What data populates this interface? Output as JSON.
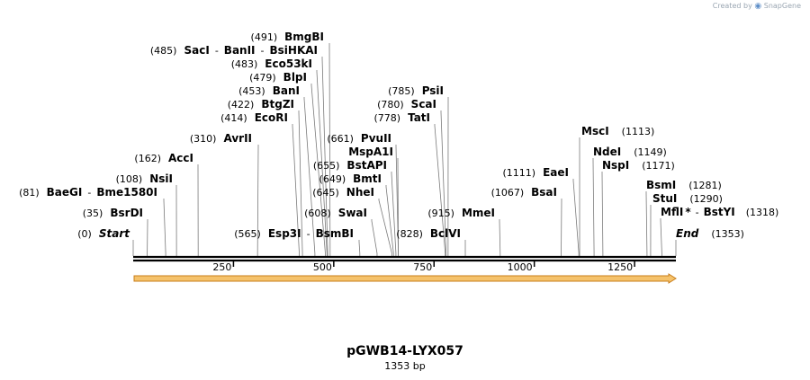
{
  "credit": {
    "prefix": "Created by",
    "brand": "SnapGene",
    "icon": "snapgene-logo-icon"
  },
  "plasmid": {
    "name": "pGWB14-LYX057",
    "size_label": "1353 bp",
    "length": 1353
  },
  "axis": {
    "ticks": [
      250,
      500,
      750,
      1000,
      1250
    ]
  },
  "feature": {
    "type": "arrow",
    "direction": "forward",
    "start": 1,
    "end": 1353,
    "fill_color": "#f5c26b",
    "stroke_color": "#c87d1a"
  },
  "colors": {
    "backbone": "#000000",
    "leader": "#7a7a7a",
    "feature_fill": "#f5c26b"
  },
  "labels": [
    {
      "name": "Start",
      "pos": 0,
      "pos_text": "(0)",
      "side": "left",
      "italic": true
    },
    {
      "name": "BsrDI",
      "pos": 35,
      "pos_text": "(35)",
      "side": "left"
    },
    {
      "name": "BaeGI",
      "pos": 81,
      "pos_text": "(81)",
      "side": "left",
      "extra": "Bme1580I"
    },
    {
      "name": "NsiI",
      "pos": 108,
      "pos_text": "(108)",
      "side": "left"
    },
    {
      "name": "AccI",
      "pos": 162,
      "pos_text": "(162)",
      "side": "left"
    },
    {
      "name": "AvrII",
      "pos": 310,
      "pos_text": "(310)",
      "side": "left"
    },
    {
      "name": "Esp3I",
      "pos": 565,
      "pos_text": "(565)",
      "side": "left",
      "extra": "BsmBI"
    },
    {
      "name": "EcoRI",
      "pos": 414,
      "pos_text": "(414)",
      "side": "left"
    },
    {
      "name": "BtgZI",
      "pos": 422,
      "pos_text": "(422)",
      "side": "left"
    },
    {
      "name": "BanI",
      "pos": 453,
      "pos_text": "(453)",
      "side": "left"
    },
    {
      "name": "BlpI",
      "pos": 479,
      "pos_text": "(479)",
      "side": "left"
    },
    {
      "name": "Eco53kI",
      "pos": 483,
      "pos_text": "(483)",
      "side": "left"
    },
    {
      "name": "SacI",
      "pos": 485,
      "pos_text": "(485)",
      "side": "left",
      "extra": "BanII",
      "extra2": "BsiHKAI"
    },
    {
      "name": "BmgBI",
      "pos": 491,
      "pos_text": "(491)",
      "side": "left"
    },
    {
      "name": "SwaI",
      "pos": 608,
      "pos_text": "(608)",
      "side": "left"
    },
    {
      "name": "NheI",
      "pos": 645,
      "pos_text": "(645)",
      "side": "left"
    },
    {
      "name": "BmtI",
      "pos": 649,
      "pos_text": "(649)",
      "side": "left"
    },
    {
      "name": "BstAPI",
      "pos": 655,
      "pos_text": "(655)",
      "side": "left"
    },
    {
      "name": "MspA1I",
      "pos": 661,
      "pos_text": "",
      "side": "left"
    },
    {
      "name": "PvuII",
      "pos": 661,
      "pos_text": "(661)",
      "side": "left"
    },
    {
      "name": "BclVI",
      "pos": 828,
      "pos_text": "(828)",
      "side": "left"
    },
    {
      "name": "TatI",
      "pos": 778,
      "pos_text": "(778)",
      "side": "left"
    },
    {
      "name": "ScaI",
      "pos": 780,
      "pos_text": "(780)",
      "side": "left"
    },
    {
      "name": "PsiI",
      "pos": 785,
      "pos_text": "(785)",
      "side": "left"
    },
    {
      "name": "MmeI",
      "pos": 915,
      "pos_text": "(915)",
      "side": "left"
    },
    {
      "name": "BsaI",
      "pos": 1067,
      "pos_text": "(1067)",
      "side": "left"
    },
    {
      "name": "EaeI",
      "pos": 1111,
      "pos_text": "(1111)",
      "side": "left"
    },
    {
      "name": "MscI",
      "pos": 1113,
      "pos_text": "(1113)",
      "side": "right"
    },
    {
      "name": "NdeI",
      "pos": 1149,
      "pos_text": "(1149)",
      "side": "right"
    },
    {
      "name": "NspI",
      "pos": 1171,
      "pos_text": "(1171)",
      "side": "right"
    },
    {
      "name": "BsmI",
      "pos": 1281,
      "pos_text": "(1281)",
      "side": "right"
    },
    {
      "name": "StuI",
      "pos": 1290,
      "pos_text": "(1290)",
      "side": "right"
    },
    {
      "name": "MflI",
      "pos": 1318,
      "pos_text": "(1318)",
      "side": "right",
      "extra": "BstYI",
      "star": "*"
    },
    {
      "name": "End",
      "pos": 1353,
      "pos_text": "(1353)",
      "side": "right",
      "italic": true
    }
  ]
}
